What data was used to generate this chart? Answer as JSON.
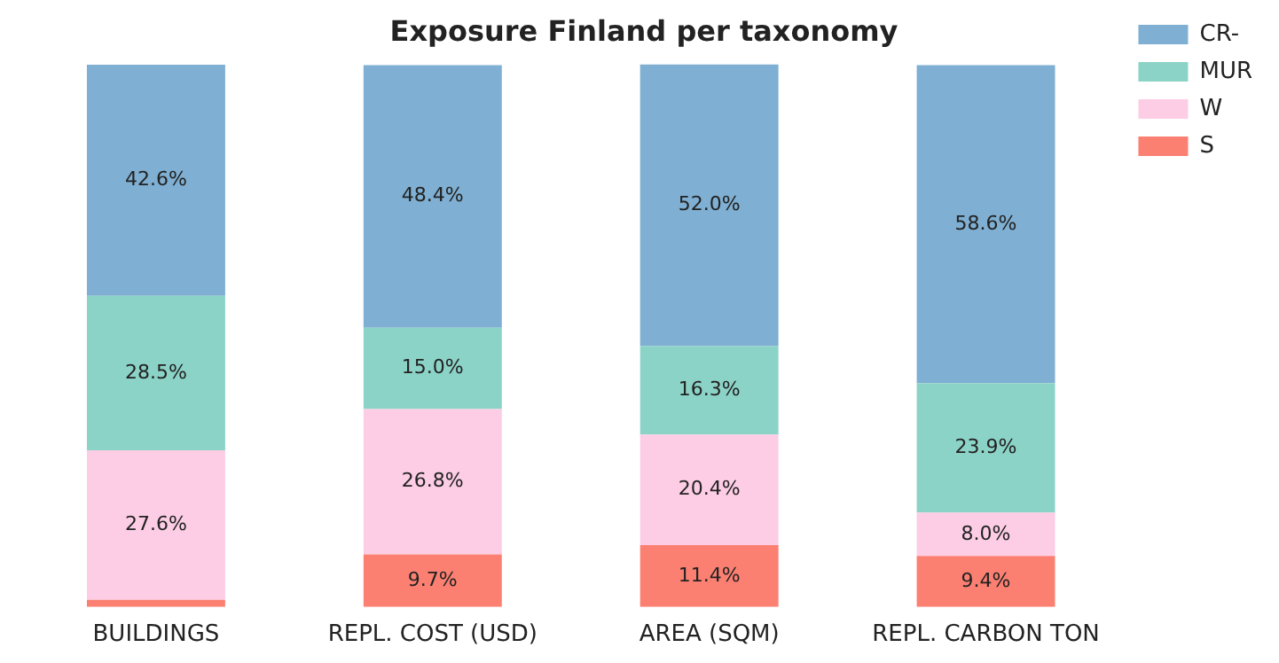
{
  "chart_data": {
    "type": "bar",
    "title": "Exposure Finland per taxonomy",
    "categories": [
      "BUILDINGS",
      "REPL. COST (USD)",
      "AREA (SQM)",
      "REPL. CARBON TON"
    ],
    "stacked": true,
    "legend": "top right",
    "grid": false,
    "tick_labels": "x",
    "series": [
      {
        "name": "S",
        "color": "#fb8072",
        "values": [
          1.3,
          9.7,
          11.4,
          9.4
        ],
        "value_labels": [
          null,
          "9.7%",
          "11.4%",
          "9.4%"
        ]
      },
      {
        "name": "W",
        "color": "#fccde5",
        "values": [
          27.6,
          26.8,
          20.4,
          8.0
        ],
        "value_labels": [
          "27.6%",
          "26.8%",
          "20.4%",
          "8.0%"
        ]
      },
      {
        "name": "MUR",
        "color": "#8cd3c7",
        "values": [
          28.5,
          15.0,
          16.3,
          23.9
        ],
        "value_labels": [
          "28.5%",
          "15.0%",
          "16.3%",
          "23.9%"
        ]
      },
      {
        "name": "CR-",
        "color": "#7fafd2",
        "values": [
          42.6,
          48.4,
          52.0,
          58.6
        ],
        "value_labels": [
          "42.6%",
          "48.4%",
          "52.0%",
          "58.6%"
        ]
      }
    ]
  }
}
